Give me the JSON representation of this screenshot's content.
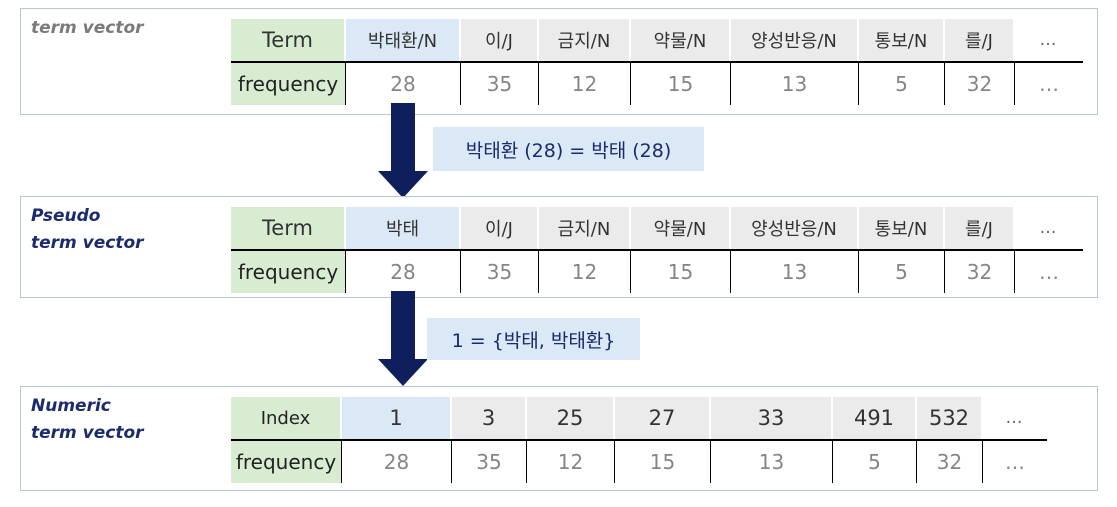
{
  "colors": {
    "label_bg": "#d8ecd2",
    "header_bg": "#ebebeb",
    "highlight_bg": "#dbe8f5",
    "arrow": "#0f1f5c",
    "title_navy": "#1c2a6e",
    "title_gray": "#7a7a7a"
  },
  "panels": [
    {
      "title": "term vector",
      "header_label": "Term",
      "value_label": "frequency",
      "columns": [
        {
          "term": "박태환/N",
          "frequency": "28",
          "highlight": true
        },
        {
          "term": "이/J",
          "frequency": "35",
          "highlight": false
        },
        {
          "term": "금지/N",
          "frequency": "12",
          "highlight": false
        },
        {
          "term": "약물/N",
          "frequency": "15",
          "highlight": false
        },
        {
          "term": "양성반응/N",
          "frequency": "13",
          "highlight": false
        },
        {
          "term": "통보/N",
          "frequency": "5",
          "highlight": false
        },
        {
          "term": "를/J",
          "frequency": "32",
          "highlight": false
        }
      ],
      "ellipsis": "…"
    },
    {
      "title": "Pseudo\nterm vector",
      "header_label": "Term",
      "value_label": "frequency",
      "columns": [
        {
          "term": "박태",
          "frequency": "28",
          "highlight": true
        },
        {
          "term": "이/J",
          "frequency": "35",
          "highlight": false
        },
        {
          "term": "금지/N",
          "frequency": "12",
          "highlight": false
        },
        {
          "term": "약물/N",
          "frequency": "15",
          "highlight": false
        },
        {
          "term": "양성반응/N",
          "frequency": "13",
          "highlight": false
        },
        {
          "term": "통보/N",
          "frequency": "5",
          "highlight": false
        },
        {
          "term": "를/J",
          "frequency": "32",
          "highlight": false
        }
      ],
      "ellipsis": "…"
    },
    {
      "title": "Numeric\nterm vector",
      "header_label": "Index",
      "value_label": "frequency",
      "columns": [
        {
          "term": "1",
          "frequency": "28",
          "highlight": true
        },
        {
          "term": "3",
          "frequency": "35",
          "highlight": false
        },
        {
          "term": "25",
          "frequency": "12",
          "highlight": false
        },
        {
          "term": "27",
          "frequency": "15",
          "highlight": false
        },
        {
          "term": "33",
          "frequency": "13",
          "highlight": false
        },
        {
          "term": "491",
          "frequency": "5",
          "highlight": false
        },
        {
          "term": "532",
          "frequency": "32",
          "highlight": false
        }
      ],
      "ellipsis": "…"
    }
  ],
  "transitions": [
    {
      "note": "박태환 (28) = 박태 (28)"
    },
    {
      "note": "1 = {박태, 박태환}"
    }
  ]
}
